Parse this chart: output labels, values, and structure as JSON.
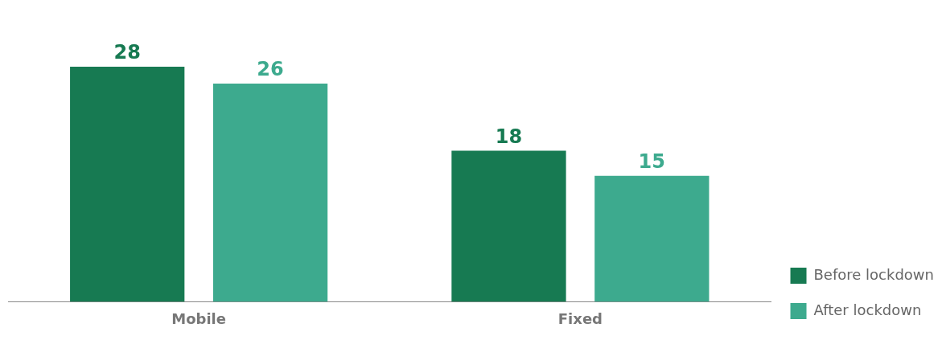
{
  "chart_data": {
    "type": "bar",
    "categories": [
      "Mobile",
      "Fixed"
    ],
    "series": [
      {
        "name": "Before lockdown",
        "color": "#177a52",
        "values": [
          28,
          18
        ]
      },
      {
        "name": "After lockdown",
        "color": "#3daa8e",
        "values": [
          26,
          15
        ]
      }
    ],
    "data_labels": true,
    "legend": "bottom right",
    "grid": false,
    "tick_labels": "x"
  }
}
